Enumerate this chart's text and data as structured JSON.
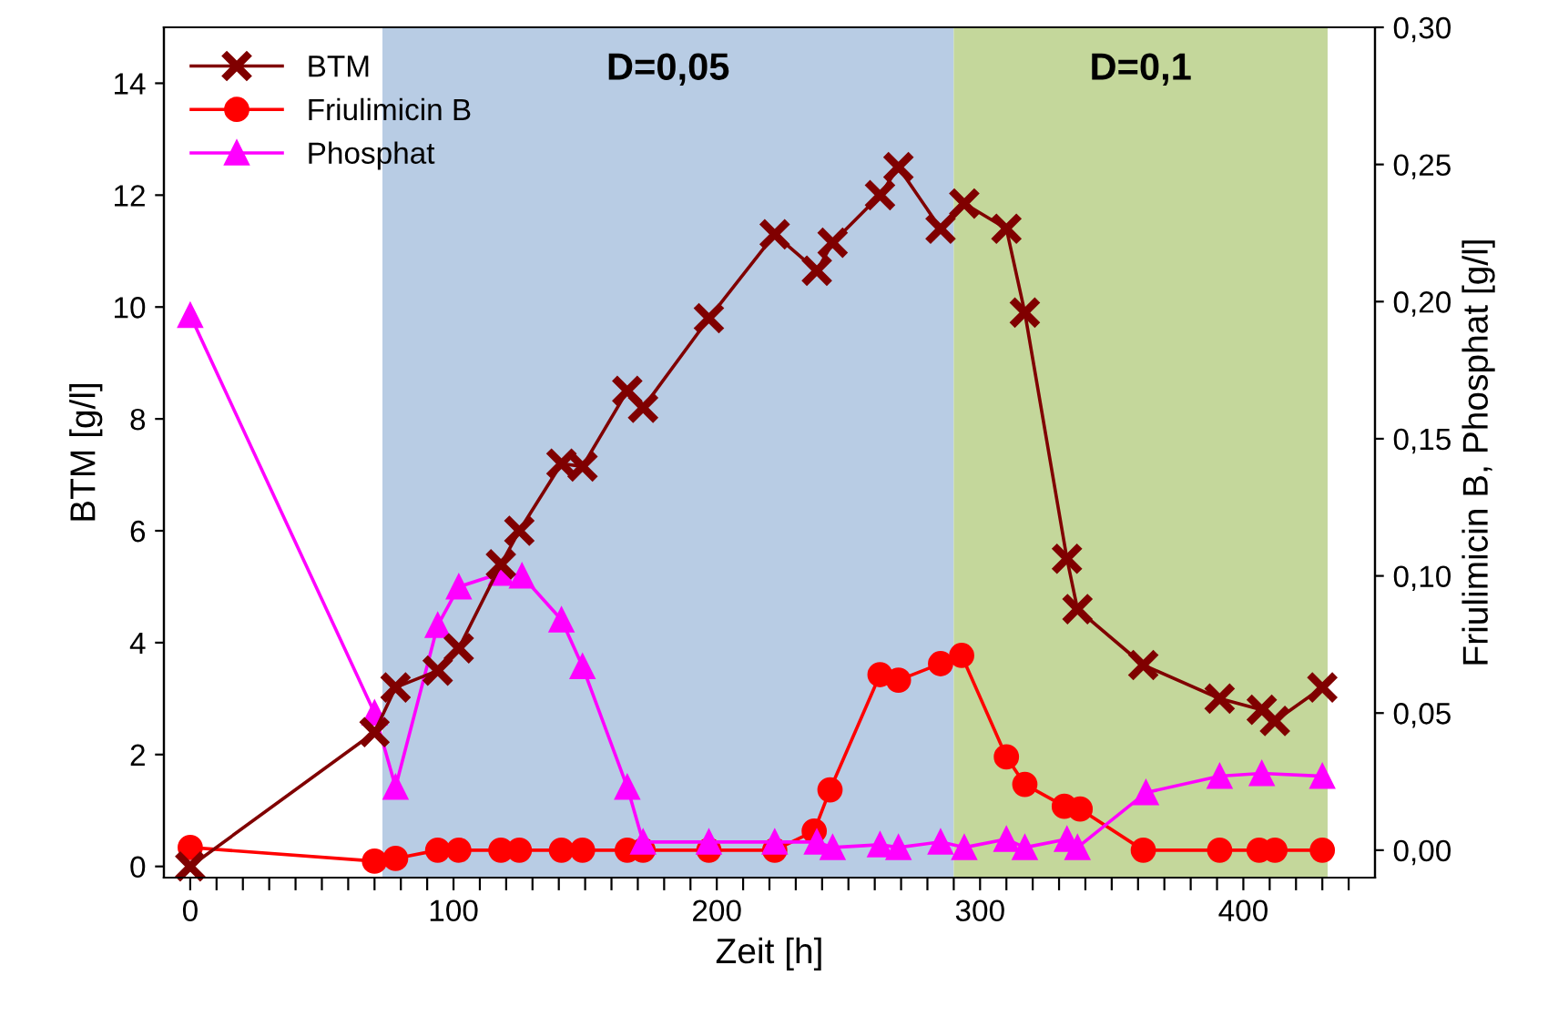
{
  "chart_data": {
    "type": "line",
    "xlabel": "Zeit [h]",
    "ylabel": "BTM [g/l]",
    "y2label": "Friulimicin B, Phosphat [g/l]",
    "xlim": [
      -10,
      450
    ],
    "xticks": [
      0,
      {
        "value": 10,
        "label": null
      },
      {
        "value": 20,
        "label": null
      },
      {
        "value": 30,
        "label": null
      },
      {
        "value": 40,
        "label": null
      },
      {
        "value": 50,
        "label": null
      },
      {
        "value": 60,
        "label": null
      },
      {
        "value": 70,
        "label": null
      },
      {
        "value": 80,
        "label": null
      },
      {
        "value": 90,
        "label": null
      },
      100,
      {
        "value": 110,
        "label": null
      },
      {
        "value": 120,
        "label": null
      },
      {
        "value": 130,
        "label": null
      },
      {
        "value": 140,
        "label": null
      },
      {
        "value": 150,
        "label": null
      },
      {
        "value": 160,
        "label": null
      },
      {
        "value": 170,
        "label": null
      },
      {
        "value": 180,
        "label": null
      },
      {
        "value": 190,
        "label": null
      },
      200,
      {
        "value": 210,
        "label": null
      },
      {
        "value": 220,
        "label": null
      },
      {
        "value": 230,
        "label": null
      },
      {
        "value": 240,
        "label": null
      },
      {
        "value": 250,
        "label": null
      },
      {
        "value": 260,
        "label": null
      },
      {
        "value": 270,
        "label": null
      },
      {
        "value": 280,
        "label": null
      },
      {
        "value": 290,
        "label": null
      },
      300,
      {
        "value": 310,
        "label": null
      },
      {
        "value": 320,
        "label": null
      },
      {
        "value": 330,
        "label": null
      },
      {
        "value": 340,
        "label": null
      },
      {
        "value": 350,
        "label": null
      },
      {
        "value": 360,
        "label": null
      },
      {
        "value": 370,
        "label": null
      },
      {
        "value": 380,
        "label": null
      },
      {
        "value": 390,
        "label": null
      },
      400,
      {
        "value": 410,
        "label": null
      },
      {
        "value": 420,
        "label": null
      },
      {
        "value": 430,
        "label": null
      },
      {
        "value": 440,
        "label": null
      }
    ],
    "ylim": [
      -0.2,
      15
    ],
    "yticks": [
      0,
      2,
      4,
      6,
      8,
      10,
      12,
      14
    ],
    "y2lim": [
      -0.01,
      0.3
    ],
    "y2ticks": [
      {
        "value": 0,
        "label": "0,00"
      },
      {
        "value": 0.05,
        "label": "0,05"
      },
      {
        "value": 0.1,
        "label": "0,10"
      },
      {
        "value": 0.15,
        "label": "0,15"
      },
      {
        "value": 0.2,
        "label": "0,20"
      },
      {
        "value": 0.25,
        "label": "0,25"
      },
      {
        "value": 0.3,
        "label": "0,30"
      }
    ],
    "bands": [
      {
        "axis": "x",
        "from": 73,
        "to": 290,
        "label": "D=0,05",
        "color": "#b8cce4"
      },
      {
        "axis": "x",
        "from": 290,
        "to": 432,
        "label": "D=0,1",
        "color": "#c4d79b"
      }
    ],
    "grid": false,
    "legend": "top left",
    "line_style": "solid",
    "series": [
      {
        "name": "BTM",
        "color": "#800000",
        "marker": "cross",
        "x": [
          0,
          70,
          78,
          94,
          102,
          118,
          125,
          141,
          149,
          166,
          172,
          197,
          222,
          238,
          244,
          262,
          269,
          285,
          294,
          310,
          317,
          333,
          337,
          362,
          391,
          407,
          412,
          430
        ],
        "values": [
          0.0,
          2.4,
          3.2,
          3.5,
          3.9,
          5.4,
          6.0,
          7.2,
          7.15,
          8.5,
          8.2,
          9.8,
          11.3,
          10.65,
          11.15,
          12.0,
          12.5,
          11.4,
          11.85,
          11.4,
          9.9,
          5.5,
          4.6,
          3.6,
          3.0,
          2.8,
          2.6,
          3.2
        ]
      },
      {
        "name": "Friulimicin B",
        "color": "#ff0000",
        "marker": "circle",
        "axis": "y2",
        "x": [
          0,
          70,
          78,
          94,
          102,
          118,
          125,
          141,
          149,
          166,
          172,
          197,
          222,
          237,
          243,
          262,
          269,
          285,
          293,
          310,
          317,
          332,
          338,
          362,
          391,
          406,
          412,
          430
        ],
        "values": [
          0.001,
          -0.004,
          -0.003,
          0.0,
          0.0,
          0.0,
          0.0,
          0.0,
          0.0,
          0.0,
          0.0,
          0.0,
          0.0,
          0.007,
          0.022,
          0.064,
          0.062,
          0.068,
          0.071,
          0.034,
          0.024,
          0.016,
          0.015,
          0.0,
          0.0,
          0.0,
          0.0,
          0.0
        ]
      },
      {
        "name": "Phosphat",
        "color": "#ff00ff",
        "marker": "triangle",
        "axis": "y2",
        "x": [
          0,
          70,
          78,
          94,
          102,
          118,
          126,
          141,
          149,
          166,
          172,
          197,
          222,
          238,
          244,
          262,
          269,
          285,
          294,
          310,
          317,
          333,
          337,
          363,
          391,
          407,
          430
        ],
        "values": [
          0.195,
          0.05,
          0.023,
          0.082,
          0.096,
          0.101,
          0.1,
          0.084,
          0.067,
          0.023,
          0.003,
          0.003,
          0.003,
          0.003,
          0.001,
          0.002,
          0.001,
          0.003,
          0.001,
          0.004,
          0.001,
          0.004,
          0.001,
          0.021,
          0.027,
          0.028,
          0.027
        ]
      }
    ]
  }
}
